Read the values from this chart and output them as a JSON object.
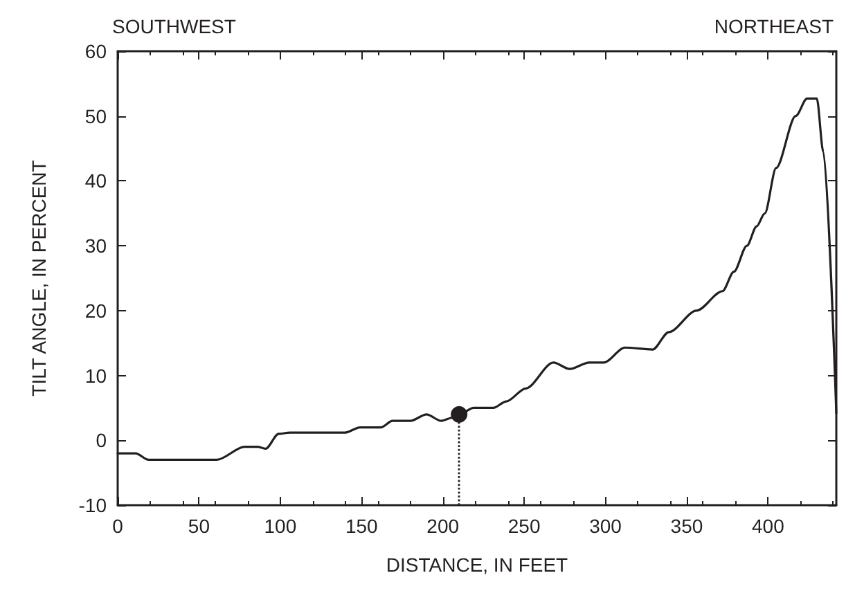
{
  "chart_data": {
    "type": "line",
    "xlabel": "DISTANCE, IN FEET",
    "ylabel": "TILT ANGLE, IN PERCENT",
    "annotations": [
      "SOUTHWEST",
      "NORTHEAST"
    ],
    "series": [
      {
        "color": "#231f20",
        "marker": "none",
        "x": [
          0,
          11,
          19,
          61,
          78,
          86,
          91,
          99,
          106,
          140,
          149,
          162,
          169,
          180,
          190,
          199,
          206,
          210,
          219,
          231,
          239,
          251,
          268,
          278,
          290,
          299,
          312,
          329,
          339,
          356,
          372,
          379,
          387,
          393,
          398,
          405,
          417,
          424,
          430,
          434,
          442
        ],
        "values": [
          -2,
          -2,
          -3,
          -3,
          -1,
          -1,
          -1.3,
          1,
          1.2,
          1.2,
          2,
          2,
          3,
          3,
          4,
          3,
          3.5,
          4,
          5,
          5,
          6,
          8,
          12,
          11,
          12,
          12,
          14.3,
          14,
          16.7,
          20,
          23,
          26,
          30,
          33,
          35,
          42,
          50,
          52.7,
          52.7,
          44.5,
          4.2
        ]
      },
      {
        "type": "scatter",
        "marker": "circle",
        "color": "#231f20",
        "x": [
          210
        ],
        "values": [
          4
        ]
      }
    ],
    "ref_lines": [
      {
        "axis": "x",
        "value": 210,
        "line_style": "dotted",
        "color": "#231f20"
      }
    ],
    "xlim": [
      0,
      442
    ],
    "xticks": [
      0,
      50,
      100,
      150,
      200,
      250,
      300,
      350,
      400
    ],
    "ylim": [
      -10,
      60
    ],
    "yticks": [
      -10,
      0,
      10,
      20,
      30,
      40,
      50,
      60
    ],
    "grid": false,
    "line_style": "solid"
  }
}
